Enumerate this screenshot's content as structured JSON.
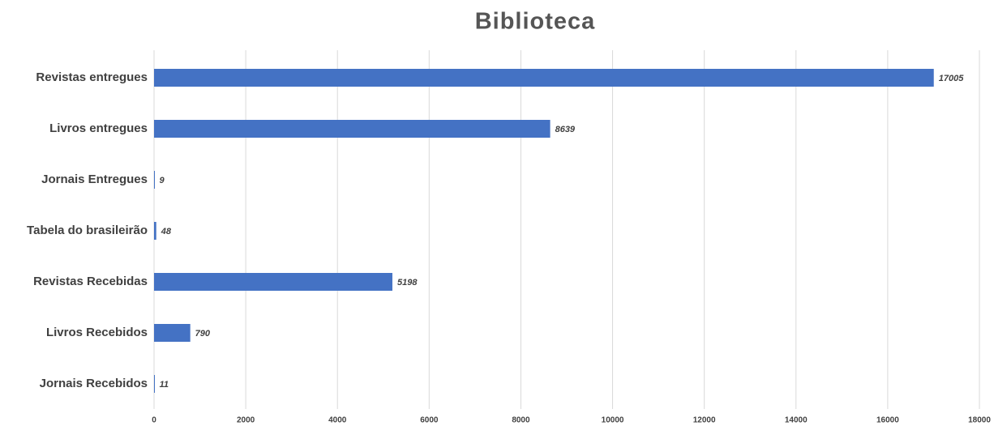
{
  "chart_data": {
    "type": "bar",
    "orientation": "horizontal",
    "title": "Biblioteca",
    "categories": [
      "Revistas entregues",
      "Livros entregues",
      "Jornais Entregues",
      "Tabela do brasileirão",
      "Revistas Recebidas",
      "Livros Recebidos",
      "Jornais Recebidos"
    ],
    "values": [
      17005,
      8639,
      9,
      48,
      5198,
      790,
      11
    ],
    "color": "#4472c4",
    "xlim": [
      0,
      18000
    ],
    "xticks": [
      0,
      2000,
      4000,
      6000,
      8000,
      10000,
      12000,
      14000,
      16000,
      18000
    ],
    "grid": true
  }
}
